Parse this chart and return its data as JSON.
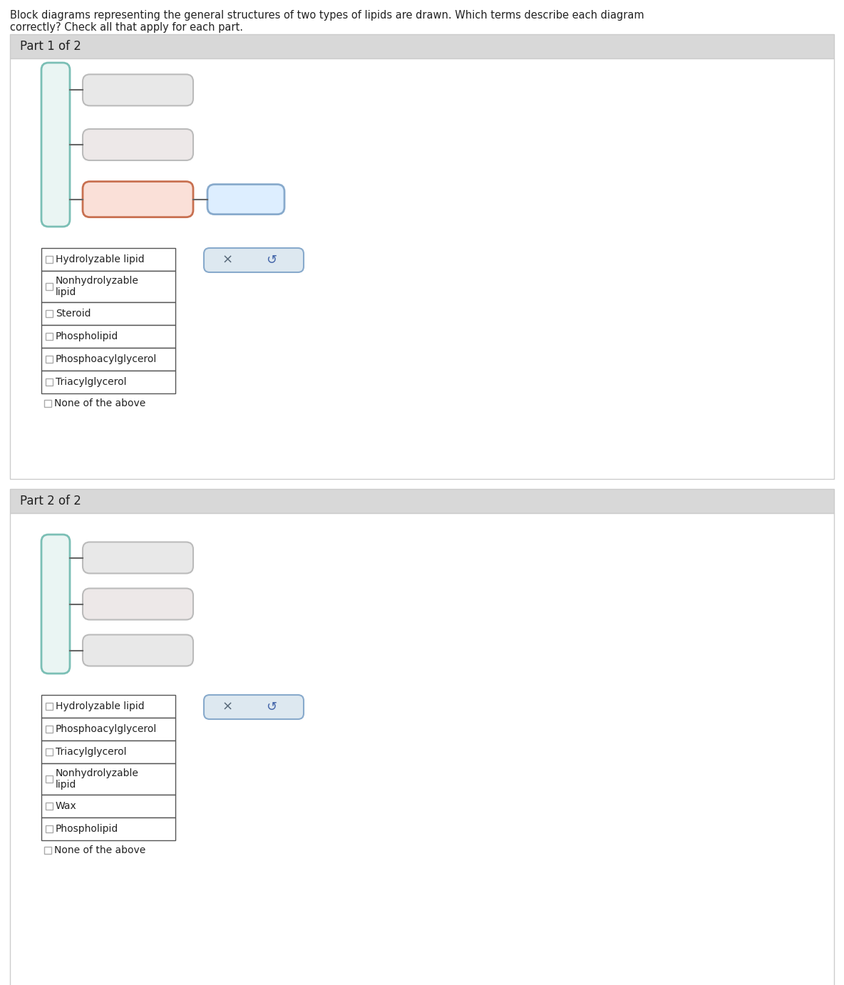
{
  "title_text": "Block diagrams representing the general structures of two types of lipids are drawn. Which terms describe each diagram\ncorrectly? Check all that apply for each part.",
  "title_fontsize": 10.5,
  "bg_color": "#ffffff",
  "part1_label": "Part 1 of 2",
  "part2_label": "Part 2 of 2",
  "part1_checkboxes": [
    "Hydrolyzable lipid",
    "Nonhydrolyzable\nlipid",
    "Steroid",
    "Phospholipid",
    "Phosphoacylglycerol",
    "Triacylglycerol"
  ],
  "part1_none": "None of the above",
  "part2_checkboxes": [
    "Hydrolyzable lipid",
    "Phosphoacylglycerol",
    "Triacylglycerol",
    "Nonhydrolyzable\nlipid",
    "Wax",
    "Phospholipid"
  ],
  "part2_none": "None of the above",
  "teal_border": "#7bbfb5",
  "teal_fill": "#eaf5f3",
  "gray_box_fill": "#e8e8e8",
  "gray_box_border": "#bbbbbb",
  "gray2_box_fill": "#ede8e8",
  "orange_box_fill": "#fae0d8",
  "orange_box_border": "#c87050",
  "blue_box_fill": "#ddeeff",
  "blue_box_border": "#88aacc",
  "line_color": "#666666",
  "checkbox_border": "#aaaaaa",
  "table_border": "#555555",
  "x_button_bg": "#dde8f0",
  "x_button_border": "#88aacc",
  "text_color": "#222222",
  "panel_header_bg": "#d8d8d8",
  "panel_border": "#cccccc",
  "panel_inner_bg": "#ffffff"
}
